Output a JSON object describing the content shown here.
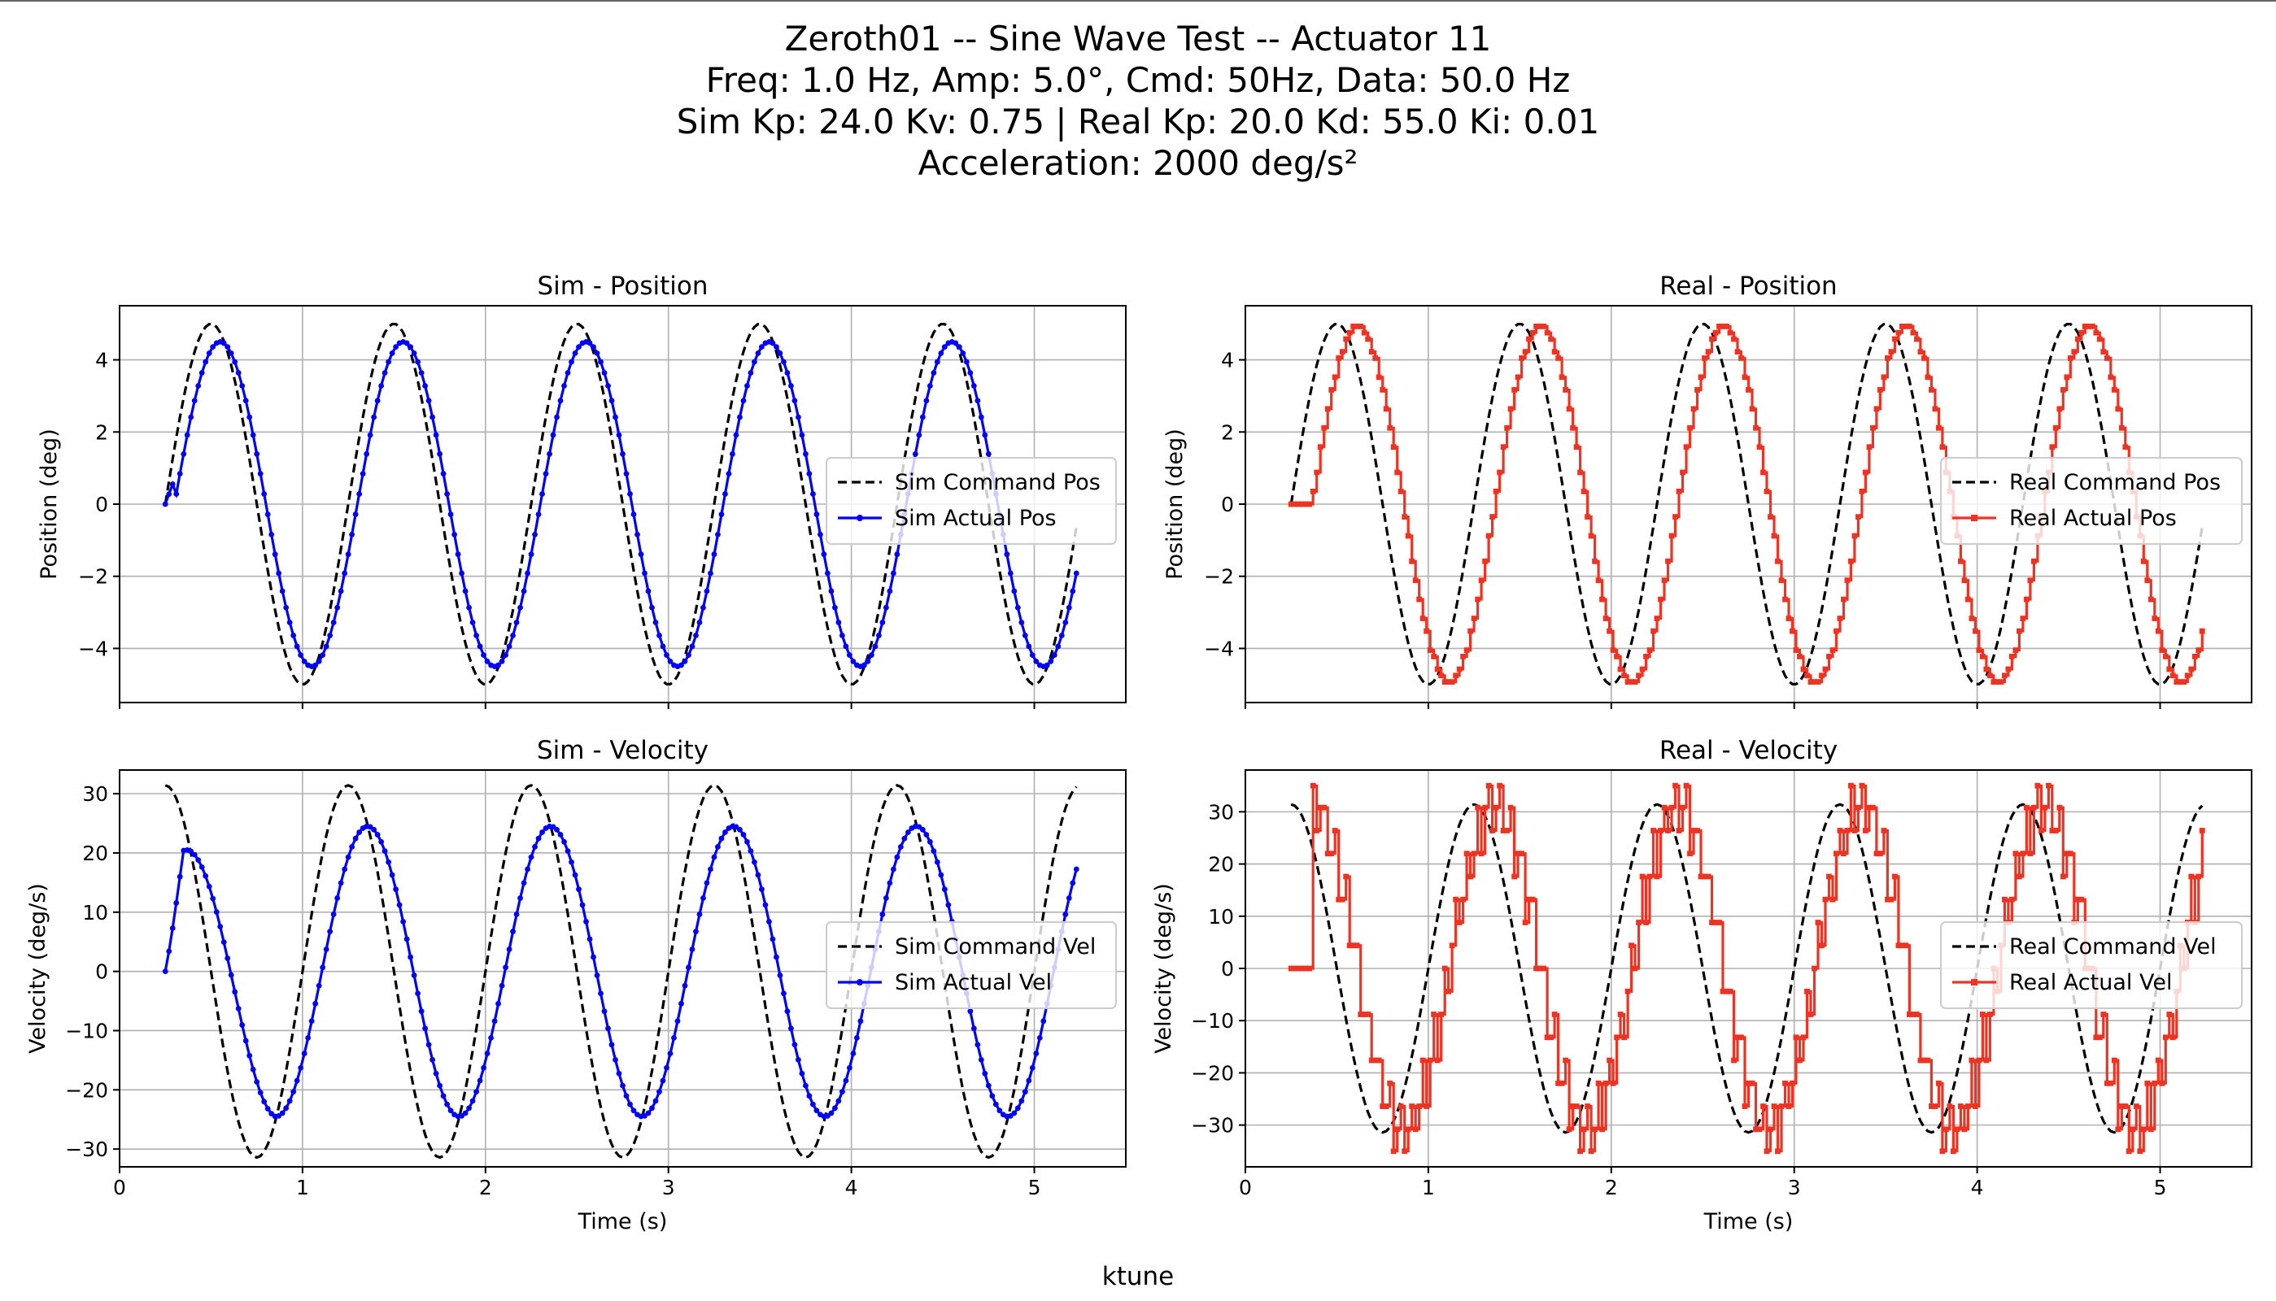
{
  "figure": {
    "title_lines": [
      "Zeroth01 -- Sine Wave Test -- Actuator 11",
      "Freq: 1.0 Hz, Amp: 5.0°, Cmd: 50Hz, Data: 50.0 Hz",
      "Sim Kp: 24.0 Kv: 0.75 | Real Kp: 20.0 Kd: 55.0 Ki: 0.01",
      "Acceleration: 2000 deg/s²"
    ],
    "footer": "ktune"
  },
  "colors": {
    "command": "#000000",
    "sim": "#0000ff",
    "real": "#ee3322",
    "grid": "#b0b0b0"
  },
  "chart_data": [
    {
      "id": "sim-position",
      "type": "line",
      "title": "Sim - Position",
      "xlabel": "",
      "ylabel": "Position (deg)",
      "xlim": [
        0,
        5.5
      ],
      "ylim": [
        -5.5,
        5.5
      ],
      "xticks": [
        0,
        1,
        2,
        3,
        4,
        5
      ],
      "yticks": [
        -4,
        -2,
        0,
        2,
        4
      ],
      "show_xticklabels": false,
      "legend_loc": "center-right",
      "generator": {
        "kind": "pos",
        "source": "sim",
        "t_start": 0.25,
        "t_end": 5.23,
        "dt": 0.02,
        "freq": 1.0,
        "amp": 5.0,
        "actual_amp": 4.5,
        "lag_s": 0.05
      },
      "series": [
        {
          "name": "Sim Command Pos",
          "role": "command",
          "style": "dashed",
          "marker": "none"
        },
        {
          "name": "Sim Actual Pos",
          "role": "actual",
          "style": "solid",
          "marker": "dot"
        }
      ]
    },
    {
      "id": "real-position",
      "type": "line",
      "title": "Real - Position",
      "xlabel": "",
      "ylabel": "Position (deg)",
      "xlim": [
        0,
        5.5
      ],
      "ylim": [
        -5.5,
        5.5
      ],
      "xticks": [
        0,
        1,
        2,
        3,
        4,
        5
      ],
      "yticks": [
        -4,
        -2,
        0,
        2,
        4
      ],
      "show_xticklabels": false,
      "legend_loc": "center-right",
      "generator": {
        "kind": "pos",
        "source": "real",
        "t_start": 0.25,
        "t_end": 5.23,
        "dt": 0.02,
        "freq": 1.0,
        "amp": 5.0,
        "actual_amp": 4.9,
        "lag_s": 0.11,
        "quant": 0.176,
        "deadtime_s": 0.1
      },
      "series": [
        {
          "name": "Real Command Pos",
          "role": "command",
          "style": "dashed",
          "marker": "none"
        },
        {
          "name": "Real Actual Pos",
          "role": "actual",
          "style": "solid",
          "marker": "square"
        }
      ]
    },
    {
      "id": "sim-velocity",
      "type": "line",
      "title": "Sim - Velocity",
      "xlabel": "Time (s)",
      "ylabel": "Velocity (deg/s)",
      "xlim": [
        0,
        5.5
      ],
      "ylim": [
        -33,
        34
      ],
      "xticks": [
        0,
        1,
        2,
        3,
        4,
        5
      ],
      "yticks": [
        -30,
        -20,
        -10,
        0,
        10,
        20,
        30
      ],
      "show_xticklabels": true,
      "legend_loc": "center-right",
      "generator": {
        "kind": "vel",
        "source": "sim",
        "t_start": 0.25,
        "t_end": 5.23,
        "dt": 0.02,
        "freq": 1.0,
        "amp": 5.0,
        "actual_amp": 24.5,
        "lag_s": 0.05
      },
      "series": [
        {
          "name": "Sim Command Vel",
          "role": "command",
          "style": "dashed",
          "marker": "none"
        },
        {
          "name": "Sim Actual Vel",
          "role": "actual",
          "style": "solid",
          "marker": "dot"
        }
      ]
    },
    {
      "id": "real-velocity",
      "type": "line",
      "title": "Real - Velocity",
      "xlabel": "Time (s)",
      "ylabel": "Velocity (deg/s)",
      "xlim": [
        0,
        5.5
      ],
      "ylim": [
        -38,
        38
      ],
      "xticks": [
        0,
        1,
        2,
        3,
        4,
        5
      ],
      "yticks": [
        -30,
        -20,
        -10,
        0,
        10,
        20,
        30
      ],
      "show_xticklabels": true,
      "legend_loc": "center-right",
      "generator": {
        "kind": "vel",
        "source": "real",
        "t_start": 0.25,
        "t_end": 5.23,
        "dt": 0.02,
        "freq": 1.0,
        "amp": 5.0,
        "actual_amp": 30.0,
        "lag_s": 0.11,
        "quant": 0.176,
        "deadtime_s": 0.1
      },
      "series": [
        {
          "name": "Real Command Vel",
          "role": "command",
          "style": "dashed",
          "marker": "none"
        },
        {
          "name": "Real Actual Vel",
          "role": "actual",
          "style": "solid",
          "marker": "square"
        }
      ]
    }
  ]
}
